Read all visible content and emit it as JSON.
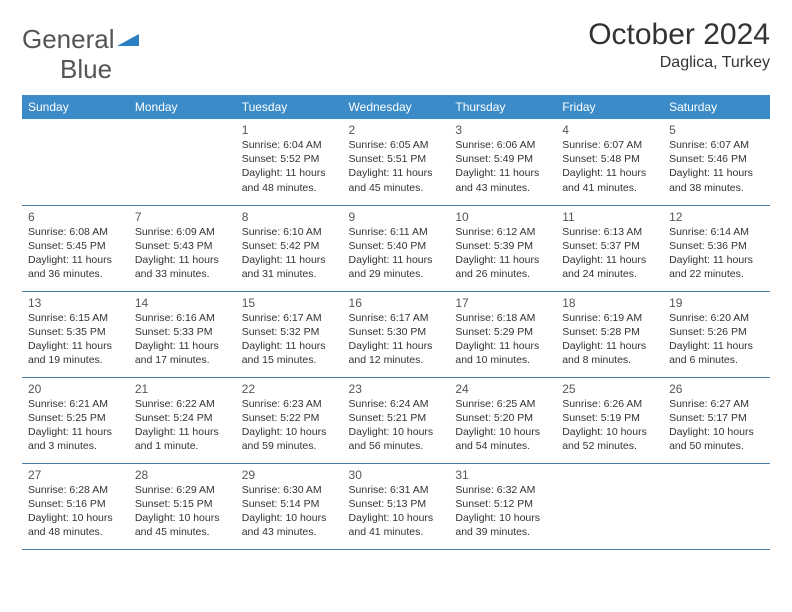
{
  "brand": {
    "left": "General",
    "right": "Blue"
  },
  "title": "October 2024",
  "location": "Daglica, Turkey",
  "colors": {
    "header_bg": "#3b8bc9",
    "header_text": "#ffffff",
    "border": "#4a7fa8",
    "text": "#333333",
    "muted": "#555555",
    "brand_blue": "#2b7fc1",
    "background": "#ffffff"
  },
  "typography": {
    "title_fontsize": 30,
    "location_fontsize": 16,
    "dayheader_fontsize": 12,
    "daynum_fontsize": 12,
    "body_fontsize": 10.5
  },
  "dayHeaders": [
    "Sunday",
    "Monday",
    "Tuesday",
    "Wednesday",
    "Thursday",
    "Friday",
    "Saturday"
  ],
  "weeks": [
    [
      null,
      null,
      {
        "n": "1",
        "sr": "Sunrise: 6:04 AM",
        "ss": "Sunset: 5:52 PM",
        "d1": "Daylight: 11 hours",
        "d2": "and 48 minutes."
      },
      {
        "n": "2",
        "sr": "Sunrise: 6:05 AM",
        "ss": "Sunset: 5:51 PM",
        "d1": "Daylight: 11 hours",
        "d2": "and 45 minutes."
      },
      {
        "n": "3",
        "sr": "Sunrise: 6:06 AM",
        "ss": "Sunset: 5:49 PM",
        "d1": "Daylight: 11 hours",
        "d2": "and 43 minutes."
      },
      {
        "n": "4",
        "sr": "Sunrise: 6:07 AM",
        "ss": "Sunset: 5:48 PM",
        "d1": "Daylight: 11 hours",
        "d2": "and 41 minutes."
      },
      {
        "n": "5",
        "sr": "Sunrise: 6:07 AM",
        "ss": "Sunset: 5:46 PM",
        "d1": "Daylight: 11 hours",
        "d2": "and 38 minutes."
      }
    ],
    [
      {
        "n": "6",
        "sr": "Sunrise: 6:08 AM",
        "ss": "Sunset: 5:45 PM",
        "d1": "Daylight: 11 hours",
        "d2": "and 36 minutes."
      },
      {
        "n": "7",
        "sr": "Sunrise: 6:09 AM",
        "ss": "Sunset: 5:43 PM",
        "d1": "Daylight: 11 hours",
        "d2": "and 33 minutes."
      },
      {
        "n": "8",
        "sr": "Sunrise: 6:10 AM",
        "ss": "Sunset: 5:42 PM",
        "d1": "Daylight: 11 hours",
        "d2": "and 31 minutes."
      },
      {
        "n": "9",
        "sr": "Sunrise: 6:11 AM",
        "ss": "Sunset: 5:40 PM",
        "d1": "Daylight: 11 hours",
        "d2": "and 29 minutes."
      },
      {
        "n": "10",
        "sr": "Sunrise: 6:12 AM",
        "ss": "Sunset: 5:39 PM",
        "d1": "Daylight: 11 hours",
        "d2": "and 26 minutes."
      },
      {
        "n": "11",
        "sr": "Sunrise: 6:13 AM",
        "ss": "Sunset: 5:37 PM",
        "d1": "Daylight: 11 hours",
        "d2": "and 24 minutes."
      },
      {
        "n": "12",
        "sr": "Sunrise: 6:14 AM",
        "ss": "Sunset: 5:36 PM",
        "d1": "Daylight: 11 hours",
        "d2": "and 22 minutes."
      }
    ],
    [
      {
        "n": "13",
        "sr": "Sunrise: 6:15 AM",
        "ss": "Sunset: 5:35 PM",
        "d1": "Daylight: 11 hours",
        "d2": "and 19 minutes."
      },
      {
        "n": "14",
        "sr": "Sunrise: 6:16 AM",
        "ss": "Sunset: 5:33 PM",
        "d1": "Daylight: 11 hours",
        "d2": "and 17 minutes."
      },
      {
        "n": "15",
        "sr": "Sunrise: 6:17 AM",
        "ss": "Sunset: 5:32 PM",
        "d1": "Daylight: 11 hours",
        "d2": "and 15 minutes."
      },
      {
        "n": "16",
        "sr": "Sunrise: 6:17 AM",
        "ss": "Sunset: 5:30 PM",
        "d1": "Daylight: 11 hours",
        "d2": "and 12 minutes."
      },
      {
        "n": "17",
        "sr": "Sunrise: 6:18 AM",
        "ss": "Sunset: 5:29 PM",
        "d1": "Daylight: 11 hours",
        "d2": "and 10 minutes."
      },
      {
        "n": "18",
        "sr": "Sunrise: 6:19 AM",
        "ss": "Sunset: 5:28 PM",
        "d1": "Daylight: 11 hours",
        "d2": "and 8 minutes."
      },
      {
        "n": "19",
        "sr": "Sunrise: 6:20 AM",
        "ss": "Sunset: 5:26 PM",
        "d1": "Daylight: 11 hours",
        "d2": "and 6 minutes."
      }
    ],
    [
      {
        "n": "20",
        "sr": "Sunrise: 6:21 AM",
        "ss": "Sunset: 5:25 PM",
        "d1": "Daylight: 11 hours",
        "d2": "and 3 minutes."
      },
      {
        "n": "21",
        "sr": "Sunrise: 6:22 AM",
        "ss": "Sunset: 5:24 PM",
        "d1": "Daylight: 11 hours",
        "d2": "and 1 minute."
      },
      {
        "n": "22",
        "sr": "Sunrise: 6:23 AM",
        "ss": "Sunset: 5:22 PM",
        "d1": "Daylight: 10 hours",
        "d2": "and 59 minutes."
      },
      {
        "n": "23",
        "sr": "Sunrise: 6:24 AM",
        "ss": "Sunset: 5:21 PM",
        "d1": "Daylight: 10 hours",
        "d2": "and 56 minutes."
      },
      {
        "n": "24",
        "sr": "Sunrise: 6:25 AM",
        "ss": "Sunset: 5:20 PM",
        "d1": "Daylight: 10 hours",
        "d2": "and 54 minutes."
      },
      {
        "n": "25",
        "sr": "Sunrise: 6:26 AM",
        "ss": "Sunset: 5:19 PM",
        "d1": "Daylight: 10 hours",
        "d2": "and 52 minutes."
      },
      {
        "n": "26",
        "sr": "Sunrise: 6:27 AM",
        "ss": "Sunset: 5:17 PM",
        "d1": "Daylight: 10 hours",
        "d2": "and 50 minutes."
      }
    ],
    [
      {
        "n": "27",
        "sr": "Sunrise: 6:28 AM",
        "ss": "Sunset: 5:16 PM",
        "d1": "Daylight: 10 hours",
        "d2": "and 48 minutes."
      },
      {
        "n": "28",
        "sr": "Sunrise: 6:29 AM",
        "ss": "Sunset: 5:15 PM",
        "d1": "Daylight: 10 hours",
        "d2": "and 45 minutes."
      },
      {
        "n": "29",
        "sr": "Sunrise: 6:30 AM",
        "ss": "Sunset: 5:14 PM",
        "d1": "Daylight: 10 hours",
        "d2": "and 43 minutes."
      },
      {
        "n": "30",
        "sr": "Sunrise: 6:31 AM",
        "ss": "Sunset: 5:13 PM",
        "d1": "Daylight: 10 hours",
        "d2": "and 41 minutes."
      },
      {
        "n": "31",
        "sr": "Sunrise: 6:32 AM",
        "ss": "Sunset: 5:12 PM",
        "d1": "Daylight: 10 hours",
        "d2": "and 39 minutes."
      },
      null,
      null
    ]
  ]
}
